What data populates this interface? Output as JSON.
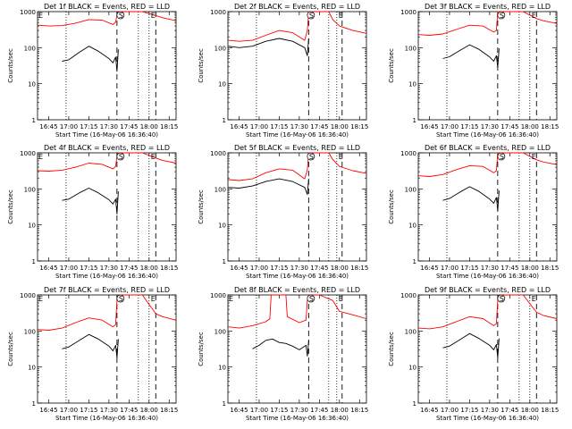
{
  "figure": {
    "background": "#ffffff",
    "axis_color": "#000000",
    "events_color": "#000000",
    "lld_color": "#ff0000"
  },
  "chart_data": [
    {
      "type": "line",
      "title": "Det 1f BLACK = Events, RED = LLD",
      "xlabel": "Start Time (16-May-06 16:36:40)",
      "ylabel": "Counts/sec",
      "xticks": [
        "16:45",
        "17:00",
        "17:15",
        "17:30",
        "17:45",
        "18:00",
        "18:15"
      ],
      "yticks": [
        "1",
        "10",
        "100",
        "1000"
      ],
      "ylim": [
        1,
        1000
      ],
      "yscale": "log",
      "dotted_times": [
        "16:58",
        "17:52",
        "18:00"
      ],
      "dashed_times": [
        "17:36",
        "18:05"
      ],
      "markers": [
        {
          "label": "E",
          "time": "16:38"
        },
        {
          "label": "S",
          "time": "17:38"
        },
        {
          "label": "E",
          "time": "18:02"
        }
      ],
      "series": [
        {
          "name": "LLD",
          "color": "#ff0000",
          "x": [
            "16:37",
            "16:45",
            "16:55",
            "17:05",
            "17:15",
            "17:25",
            "17:33",
            "17:35",
            "17:36",
            "17:37",
            "17:38",
            "17:45",
            "17:55",
            "18:05",
            "18:10",
            "18:20"
          ],
          "y": [
            420,
            400,
            410,
            480,
            600,
            580,
            440,
            520,
            800,
            1000,
            1000,
            1000,
            1000,
            780,
            680,
            560
          ]
        },
        {
          "name": "Events",
          "color": "#000000",
          "x": [
            "16:55",
            "17:00",
            "17:08",
            "17:15",
            "17:22",
            "17:30",
            "17:33",
            "17:35",
            "17:36",
            "17:37"
          ],
          "y": [
            42,
            46,
            75,
            110,
            80,
            50,
            38,
            55,
            22,
            90
          ]
        }
      ]
    },
    {
      "type": "line",
      "title": "Det 2f BLACK = Events, RED = LLD",
      "xlabel": "Start Time (16-May-06 16:36:40)",
      "ylabel": "Counts/sec",
      "xticks": [
        "16:45",
        "17:00",
        "17:15",
        "17:30",
        "17:45",
        "18:00",
        "18:15"
      ],
      "yticks": [
        "1",
        "10",
        "100",
        "1000"
      ],
      "ylim": [
        1,
        1000
      ],
      "yscale": "log",
      "dotted_times": [
        "16:58",
        "17:52",
        "17:58"
      ],
      "dashed_times": [
        "17:37",
        "18:02"
      ],
      "markers": [
        {
          "label": "S",
          "time": "17:38"
        },
        {
          "label": "E",
          "time": "18:00"
        }
      ],
      "series": [
        {
          "name": "LLD",
          "color": "#ff0000",
          "x": [
            "16:37",
            "16:45",
            "16:55",
            "17:05",
            "17:15",
            "17:25",
            "17:34",
            "17:36",
            "17:37",
            "17:38",
            "17:45",
            "17:52",
            "17:55",
            "18:00",
            "18:10",
            "18:20"
          ],
          "y": [
            160,
            150,
            160,
            220,
            300,
            260,
            160,
            300,
            1000,
            1000,
            1000,
            1000,
            600,
            400,
            300,
            250
          ]
        },
        {
          "name": "Events",
          "color": "#000000",
          "x": [
            "16:37",
            "16:45",
            "16:55",
            "17:05",
            "17:15",
            "17:25",
            "17:34",
            "17:36",
            "17:37"
          ],
          "y": [
            110,
            100,
            110,
            150,
            180,
            150,
            100,
            60,
            180
          ]
        }
      ]
    },
    {
      "type": "line",
      "title": "Det 3f BLACK = Events, RED = LLD",
      "xlabel": "Start Time (16-May-06 16:36:40)",
      "ylabel": "Counts/sec",
      "xticks": [
        "16:45",
        "17:00",
        "17:15",
        "17:30",
        "17:45",
        "18:00",
        "18:15"
      ],
      "yticks": [
        "1",
        "10",
        "100",
        "1000"
      ],
      "ylim": [
        1,
        1000
      ],
      "yscale": "log",
      "dotted_times": [
        "16:58",
        "17:52",
        "18:00"
      ],
      "dashed_times": [
        "17:36",
        "18:05"
      ],
      "markers": [
        {
          "label": "S",
          "time": "17:38"
        },
        {
          "label": "E",
          "time": "18:02"
        }
      ],
      "series": [
        {
          "name": "LLD",
          "color": "#ff0000",
          "x": [
            "16:37",
            "16:45",
            "16:55",
            "17:05",
            "17:15",
            "17:25",
            "17:33",
            "17:35",
            "17:36",
            "17:37",
            "17:38",
            "17:45",
            "17:55",
            "18:05",
            "18:10",
            "18:20"
          ],
          "y": [
            230,
            220,
            240,
            320,
            420,
            400,
            270,
            300,
            1000,
            1000,
            1000,
            1000,
            1000,
            640,
            560,
            470
          ]
        },
        {
          "name": "Events",
          "color": "#000000",
          "x": [
            "16:55",
            "17:00",
            "17:08",
            "17:15",
            "17:22",
            "17:30",
            "17:33",
            "17:35",
            "17:36",
            "17:37"
          ],
          "y": [
            50,
            56,
            85,
            120,
            90,
            55,
            42,
            60,
            28,
            95
          ]
        }
      ]
    },
    {
      "type": "line",
      "title": "Det 4f BLACK = Events, RED = LLD",
      "xlabel": "Start Time (16-May-06 16:36:40)",
      "ylabel": "Counts/sec",
      "xticks": [
        "16:45",
        "17:00",
        "17:15",
        "17:30",
        "17:45",
        "18:00",
        "18:15"
      ],
      "yticks": [
        "1",
        "10",
        "100",
        "1000"
      ],
      "ylim": [
        1,
        1000
      ],
      "yscale": "log",
      "dotted_times": [
        "16:58",
        "17:52",
        "18:00"
      ],
      "dashed_times": [
        "17:36",
        "18:05"
      ],
      "markers": [
        {
          "label": "E",
          "time": "16:38"
        },
        {
          "label": "S",
          "time": "17:38"
        },
        {
          "label": "E",
          "time": "18:02"
        }
      ],
      "series": [
        {
          "name": "LLD",
          "color": "#ff0000",
          "x": [
            "16:37",
            "16:45",
            "16:55",
            "17:05",
            "17:15",
            "17:25",
            "17:33",
            "17:35",
            "17:36",
            "17:37",
            "17:38",
            "17:45",
            "17:55",
            "18:05",
            "18:10",
            "18:20"
          ],
          "y": [
            320,
            310,
            330,
            400,
            520,
            480,
            360,
            420,
            800,
            1000,
            1000,
            1000,
            1000,
            720,
            620,
            520
          ]
        },
        {
          "name": "Events",
          "color": "#000000",
          "x": [
            "16:55",
            "17:00",
            "17:08",
            "17:15",
            "17:22",
            "17:30",
            "17:33",
            "17:35",
            "17:36",
            "17:37"
          ],
          "y": [
            48,
            52,
            78,
            105,
            78,
            50,
            38,
            52,
            20,
            85
          ]
        }
      ]
    },
    {
      "type": "line",
      "title": "Det 5f BLACK = Events, RED = LLD",
      "xlabel": "Start Time (16-May-06 16:36:40)",
      "ylabel": "Counts/sec",
      "xticks": [
        "16:45",
        "17:00",
        "17:15",
        "17:30",
        "17:45",
        "18:00",
        "18:15"
      ],
      "yticks": [
        "1",
        "10",
        "100",
        "1000"
      ],
      "ylim": [
        1,
        1000
      ],
      "yscale": "log",
      "dotted_times": [
        "16:58",
        "17:52",
        "17:58"
      ],
      "dashed_times": [
        "17:37",
        "18:02"
      ],
      "markers": [
        {
          "label": "S",
          "time": "17:38"
        },
        {
          "label": "E",
          "time": "18:00"
        }
      ],
      "series": [
        {
          "name": "LLD",
          "color": "#ff0000",
          "x": [
            "16:37",
            "16:45",
            "16:55",
            "17:05",
            "17:15",
            "17:25",
            "17:34",
            "17:36",
            "17:37",
            "17:38",
            "17:45",
            "17:52",
            "17:55",
            "18:00",
            "18:10",
            "18:20"
          ],
          "y": [
            180,
            170,
            190,
            280,
            360,
            330,
            190,
            340,
            1000,
            1000,
            1000,
            1000,
            650,
            420,
            320,
            270
          ]
        },
        {
          "name": "Events",
          "color": "#000000",
          "x": [
            "16:37",
            "16:45",
            "16:55",
            "17:05",
            "17:15",
            "17:25",
            "17:34",
            "17:36",
            "17:37"
          ],
          "y": [
            110,
            105,
            120,
            160,
            190,
            160,
            110,
            70,
            190
          ]
        }
      ]
    },
    {
      "type": "line",
      "title": "Det 6f BLACK = Events, RED = LLD",
      "xlabel": "Start Time (16-May-06 16:36:40)",
      "ylabel": "Counts/sec",
      "xticks": [
        "16:45",
        "17:00",
        "17:15",
        "17:30",
        "17:45",
        "18:00",
        "18:15"
      ],
      "yticks": [
        "1",
        "10",
        "100",
        "1000"
      ],
      "ylim": [
        1,
        1000
      ],
      "yscale": "log",
      "dotted_times": [
        "16:58",
        "17:52",
        "18:00"
      ],
      "dashed_times": [
        "17:36",
        "18:05"
      ],
      "markers": [
        {
          "label": "S",
          "time": "17:38"
        },
        {
          "label": "E",
          "time": "18:02"
        }
      ],
      "series": [
        {
          "name": "LLD",
          "color": "#ff0000",
          "x": [
            "16:37",
            "16:45",
            "16:55",
            "17:05",
            "17:15",
            "17:25",
            "17:33",
            "17:35",
            "17:36",
            "17:37",
            "17:38",
            "17:45",
            "17:55",
            "18:05",
            "18:10",
            "18:20"
          ],
          "y": [
            230,
            220,
            250,
            340,
            440,
            420,
            280,
            320,
            1000,
            1000,
            1000,
            1000,
            1000,
            640,
            560,
            470
          ]
        },
        {
          "name": "Events",
          "color": "#000000",
          "x": [
            "16:55",
            "17:00",
            "17:08",
            "17:15",
            "17:22",
            "17:30",
            "17:33",
            "17:35",
            "17:36",
            "17:37"
          ],
          "y": [
            48,
            54,
            82,
            115,
            85,
            52,
            40,
            58,
            25,
            90
          ]
        }
      ]
    },
    {
      "type": "line",
      "title": "Det 7f BLACK = Events, RED = LLD",
      "xlabel": "Start Time (16-May-06 16:36:40)",
      "ylabel": "Counts/sec",
      "xticks": [
        "16:45",
        "17:00",
        "17:15",
        "17:30",
        "17:45",
        "18:00",
        "18:15"
      ],
      "yticks": [
        "1",
        "10",
        "100",
        "1000"
      ],
      "ylim": [
        1,
        1000
      ],
      "yscale": "log",
      "dotted_times": [
        "16:58",
        "17:52",
        "18:00"
      ],
      "dashed_times": [
        "17:36",
        "18:05"
      ],
      "markers": [
        {
          "label": "E",
          "time": "16:38"
        },
        {
          "label": "S",
          "time": "17:38"
        },
        {
          "label": "E",
          "time": "18:02"
        }
      ],
      "series": [
        {
          "name": "LLD",
          "color": "#ff0000",
          "x": [
            "16:37",
            "16:45",
            "16:55",
            "17:05",
            "17:15",
            "17:25",
            "17:33",
            "17:35",
            "17:36",
            "17:37",
            "17:38",
            "17:45",
            "17:55",
            "18:05",
            "18:10",
            "18:20"
          ],
          "y": [
            110,
            105,
            120,
            170,
            230,
            200,
            130,
            150,
            700,
            1000,
            1000,
            1000,
            1000,
            300,
            250,
            200
          ]
        },
        {
          "name": "Events",
          "color": "#000000",
          "x": [
            "16:55",
            "17:00",
            "17:08",
            "17:15",
            "17:22",
            "17:30",
            "17:33",
            "17:35",
            "17:36",
            "17:37"
          ],
          "y": [
            32,
            36,
            55,
            80,
            60,
            38,
            28,
            40,
            18,
            60
          ]
        }
      ]
    },
    {
      "type": "line",
      "title": "Det 8f BLACK = Events, RED = LLD",
      "xlabel": "Start Time (16-May-06 16:36:40)",
      "ylabel": "Counts/sec",
      "xticks": [
        "16:45",
        "17:00",
        "17:15",
        "17:30",
        "17:45",
        "18:00",
        "18:15"
      ],
      "yticks": [
        "1",
        "10",
        "100",
        "1000"
      ],
      "ylim": [
        1,
        1000
      ],
      "yscale": "log",
      "dotted_times": [
        "16:58",
        "17:52",
        "17:58"
      ],
      "dashed_times": [
        "17:37",
        "18:02"
      ],
      "markers": [
        {
          "label": "E",
          "time": "16:38"
        },
        {
          "label": "S",
          "time": "17:38"
        },
        {
          "label": "E",
          "time": "18:00"
        }
      ],
      "series": [
        {
          "name": "LLD",
          "color": "#ff0000",
          "x": [
            "16:37",
            "16:45",
            "16:55",
            "17:05",
            "17:08",
            "17:09",
            "17:20",
            "17:21",
            "17:30",
            "17:35",
            "17:36",
            "17:37",
            "17:38",
            "17:45",
            "17:55",
            "18:00",
            "18:10",
            "18:20"
          ],
          "y": [
            130,
            120,
            140,
            180,
            220,
            1000,
            1000,
            250,
            170,
            200,
            700,
            1000,
            1000,
            1000,
            700,
            350,
            280,
            220
          ]
        },
        {
          "name": "Events",
          "color": "#000000",
          "x": [
            "16:55",
            "17:00",
            "17:05",
            "17:10",
            "17:15",
            "17:20",
            "17:25",
            "17:30",
            "17:35",
            "17:36",
            "17:37"
          ],
          "y": [
            32,
            40,
            55,
            60,
            48,
            45,
            38,
            30,
            40,
            20,
            55
          ]
        }
      ]
    },
    {
      "type": "line",
      "title": "Det 9f BLACK = Events, RED = LLD",
      "xlabel": "Start Time (16-May-06 16:36:40)",
      "ylabel": "Counts/sec",
      "xticks": [
        "16:45",
        "17:00",
        "17:15",
        "17:30",
        "17:45",
        "18:00",
        "18:15"
      ],
      "yticks": [
        "1",
        "10",
        "100",
        "1000"
      ],
      "ylim": [
        1,
        1000
      ],
      "yscale": "log",
      "dotted_times": [
        "16:58",
        "17:52",
        "18:00"
      ],
      "dashed_times": [
        "17:36",
        "18:05"
      ],
      "markers": [
        {
          "label": "S",
          "time": "17:38"
        },
        {
          "label": "E",
          "time": "18:02"
        }
      ],
      "series": [
        {
          "name": "LLD",
          "color": "#ff0000",
          "x": [
            "16:37",
            "16:45",
            "16:55",
            "17:05",
            "17:15",
            "17:25",
            "17:33",
            "17:35",
            "17:36",
            "17:37",
            "17:38",
            "17:45",
            "17:55",
            "18:05",
            "18:10",
            "18:20"
          ],
          "y": [
            120,
            115,
            130,
            180,
            250,
            220,
            140,
            160,
            700,
            1000,
            1000,
            1000,
            1000,
            330,
            270,
            220
          ]
        },
        {
          "name": "Events",
          "color": "#000000",
          "x": [
            "16:55",
            "17:00",
            "17:08",
            "17:15",
            "17:22",
            "17:30",
            "17:33",
            "17:35",
            "17:36",
            "17:37"
          ],
          "y": [
            34,
            38,
            58,
            85,
            62,
            40,
            30,
            42,
            18,
            62
          ]
        }
      ]
    }
  ]
}
